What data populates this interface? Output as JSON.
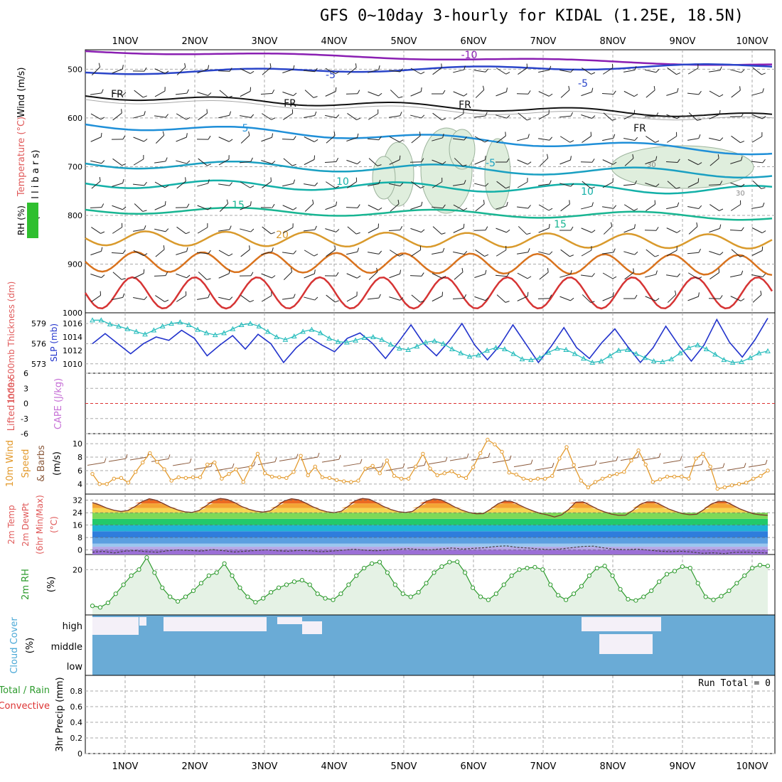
{
  "title": "GFS 0~10day 3-hourly for KIDAL (1.25E, 18.5N)",
  "dates": [
    "1NOV",
    "2NOV",
    "3NOV",
    "4NOV",
    "5NOV",
    "6NOV",
    "7NOV",
    "8NOV",
    "9NOV",
    "10NOV"
  ],
  "colors": {
    "background": "#ffffff",
    "grid": "#aaaaaa",
    "slp": "#2233cc",
    "thickness": "#22bbbb",
    "wind_speed": "#e39a2d",
    "wind_barbs": "#8b5a3c",
    "rh": "#2e9b2e",
    "rh_fill": "#e5f2e5",
    "cloud": "#6aabd6",
    "cloud_clear": "#f4f0f8",
    "lifted_index_line": "#dd3333"
  },
  "chart_data": [
    {
      "panel": "upper_air",
      "type": "contour",
      "ylabels": [
        "Wind (m/s)",
        "Temperature (°C)",
        "RH (%)",
        "(m i l l i b a r s)"
      ],
      "yticks": [
        500,
        600,
        700,
        800,
        900,
        1000
      ],
      "ylim": [
        460,
        1000
      ],
      "isotherm_labels": [
        "-10",
        "-5",
        "-5",
        "FR",
        "FR",
        "FR",
        "FR",
        "5",
        "-5",
        "10",
        "10",
        "15",
        "15",
        "20"
      ],
      "rh_labels": [
        "30",
        "30"
      ]
    },
    {
      "panel": "thickness_slp",
      "type": "line",
      "ylabel_left": "1000-500mb Thickness (dm)",
      "ylabel_right": "SLP (mb)",
      "yticks_left": [
        573,
        576,
        579
      ],
      "yticks_right": [
        1010,
        1012,
        1014,
        1016
      ],
      "series": [
        {
          "name": "SLP (mb)",
          "values": [
            1013,
            1014.5,
            1013,
            1011.5,
            1013,
            1014,
            1013.5,
            1015,
            1013.8,
            1011.2,
            1012.8,
            1014.2,
            1012.2,
            1014.4,
            1013,
            1010.2,
            1012.4,
            1014,
            1012.8,
            1011.8,
            1013.8,
            1014.6,
            1013,
            1010.8,
            1013.2,
            1015.8,
            1013,
            1011.2,
            1013.4,
            1016,
            1012.8,
            1010.6,
            1012.8,
            1015.8,
            1013,
            1010.2,
            1012.6,
            1015.4,
            1012.4,
            1010.8,
            1013.2,
            1015.2,
            1012.6,
            1010.2,
            1012.4,
            1015.6,
            1012.8,
            1010.4,
            1012.8,
            1016.6,
            1013.2,
            1011,
            1013.6,
            1016.8
          ]
        },
        {
          "name": "1000-500mb Thickness (dm)",
          "values": [
            579.5,
            579.5,
            578.9,
            578.6,
            578.2,
            577.8,
            577.4,
            578,
            578.6,
            579,
            579.2,
            578.8,
            578.1,
            577.6,
            577.3,
            577.6,
            578.2,
            578.8,
            579,
            578.6,
            577.8,
            577,
            576.6,
            577.1,
            577.8,
            578.1,
            577.6,
            576.8,
            576.3,
            576.2,
            576.5,
            576.9,
            577,
            576.6,
            575.9,
            575.3,
            575.1,
            575.6,
            576.2,
            576.4,
            576,
            575.2,
            574.6,
            574.1,
            574.3,
            575,
            575.4,
            575.2,
            574.5,
            573.7,
            573.6,
            573.9,
            574.7,
            575.3,
            575.1,
            574.5,
            573.8,
            573.2,
            573.4,
            574.2,
            575,
            575.1,
            574.5,
            573.9,
            573.4,
            573.3,
            573.7,
            574.6,
            575.4,
            575.8,
            575.2,
            574.4,
            573.6,
            573.2,
            573.3,
            573.9,
            574.6,
            574.9
          ]
        }
      ]
    },
    {
      "panel": "stability",
      "type": "line",
      "ylabels": [
        "Lifted Index",
        "CAPE (J/kg)"
      ],
      "yticks": [
        6,
        3,
        0,
        -3,
        -6
      ],
      "ylim": [
        -6,
        6
      ],
      "series": [
        {
          "name": "Lifted Index",
          "values": []
        }
      ]
    },
    {
      "panel": "wind10m",
      "type": "line",
      "ylabels": [
        "10m Wind",
        "Speed",
        "& Barbs",
        "(m/s)"
      ],
      "yticks": [
        4,
        6,
        8,
        10
      ],
      "ylim": [
        2.5,
        11.5
      ],
      "series": [
        {
          "name": "10m Wind Speed",
          "values": [
            5.5,
            4,
            4,
            4.8,
            4.9,
            4.2,
            5.8,
            7.2,
            8.6,
            7.3,
            6.2,
            4.5,
            5,
            4.9,
            5,
            5,
            6.9,
            7.2,
            4.8,
            5.5,
            6.2,
            4.3,
            6.5,
            8.5,
            5.6,
            5.1,
            5,
            4.9,
            5.8,
            8.2,
            5.3,
            6.6,
            5,
            4.9,
            4.6,
            4.4,
            4.3,
            4.5,
            6.3,
            6.7,
            5.6,
            7.5,
            5.2,
            4.8,
            4.8,
            6.6,
            8.5,
            6.3,
            5.3,
            5.6,
            5.9,
            5.2,
            4.9,
            6.5,
            8.6,
            10.6,
            9.9,
            8.8,
            5.7,
            5.4,
            4.8,
            4.6,
            4.8,
            4.8,
            5.2,
            7.8,
            9.5,
            6.8,
            4.5,
            3.5,
            4.3,
            4.8,
            5.2,
            5.5,
            5.8,
            7.5,
            9,
            6.9,
            4.3,
            4.7,
            5.1,
            5.1,
            5.1,
            4.8,
            7.8,
            8.5,
            6.6,
            3.3,
            3.5,
            3.8,
            4,
            4.2,
            4.8,
            5.2,
            6
          ]
        }
      ]
    },
    {
      "panel": "temperature",
      "type": "area",
      "ylabels": [
        "2m Temp",
        "2m DewPt",
        "(6hr Min/Max)"
      ],
      "ylabel_unit": "(°C)",
      "yticks": [
        0,
        8,
        16,
        24,
        32
      ],
      "ylim": [
        -3,
        36
      ],
      "series": [
        {
          "name": "2m Temp",
          "values": [
            30.5,
            29,
            27,
            25.6,
            24.8,
            25.4,
            28,
            31.2,
            33,
            32,
            29.8,
            27.5,
            25.8,
            24.6,
            24.2,
            25.4,
            28.5,
            31.8,
            33.2,
            32.5,
            30.5,
            28,
            26.2,
            25,
            24.4,
            25.2,
            28.3,
            31.6,
            33,
            32.3,
            30.2,
            27.8,
            25.9,
            24.6,
            24,
            24.9,
            28.2,
            31.8,
            33.2,
            32.6,
            30.4,
            27.9,
            26,
            24.7,
            24.1,
            24.8,
            28,
            31.5,
            32.9,
            32.4,
            30.1,
            27.6,
            25.6,
            24.1,
            23.3,
            23.4,
            26.2,
            29.6,
            31.5,
            31.2,
            29.1,
            26.9,
            25.1,
            23.5,
            22.6,
            21.2,
            22.6,
            26.1,
            30.8,
            31,
            28.8,
            26.4,
            24.6,
            23.1,
            22.3,
            22.4,
            25.4,
            29.2,
            31,
            31,
            28.9,
            26.5,
            24.8,
            23.4,
            22.7,
            23,
            26,
            29.4,
            31.2,
            31.2,
            29,
            26.6,
            24.8,
            23.3,
            22.6,
            22.3
          ]
        },
        {
          "name": "2m DewPt",
          "values": [
            -1.5,
            -1,
            -2,
            -0.8,
            -0.5,
            -1.2,
            -1.5,
            -0.5,
            0,
            -0.4,
            -0.8,
            0.2,
            -0.5,
            -1.4,
            -0.9,
            -0.4,
            0,
            -0.6,
            -0.9,
            -0.3,
            -0.6,
            -1.2,
            -0.8,
            -0.2,
            0.4,
            -0.2,
            -0.6,
            -0.1,
            0.4,
            0.8,
            0.2,
            0,
            0.6,
            1.2,
            0.5,
            1,
            1.4,
            2.2,
            2.6,
            1.6,
            1.2,
            0.6,
            0.2,
            0.6,
            1.4,
            2.2,
            2.4,
            1.2,
            0.4,
            0.1,
            0.5,
            -0.1,
            -0.8,
            -1.2,
            -0.9,
            -1.4,
            -2.2,
            -1.9,
            -2.4,
            -1.6,
            -1.5,
            -1.8,
            -2
          ]
        }
      ]
    },
    {
      "panel": "rh",
      "type": "line",
      "ylabels": [
        "2m RH",
        "(%)"
      ],
      "yticks": [
        20
      ],
      "ylim": [
        5,
        25
      ],
      "series": [
        {
          "name": "2m RH",
          "values": [
            8,
            7.5,
            9,
            12,
            15,
            18,
            20,
            24,
            19,
            14,
            11,
            9.5,
            11,
            13,
            15.5,
            18,
            19,
            22,
            18,
            14,
            11,
            9.2,
            10.5,
            12.5,
            14,
            15,
            16,
            16.5,
            15,
            12,
            10.5,
            10,
            12,
            15,
            18,
            20.5,
            22,
            22.5,
            19,
            15,
            12,
            11,
            12.5,
            15.5,
            19,
            21,
            22.5,
            22.6,
            19,
            14,
            11,
            10,
            12,
            15,
            18,
            20,
            20.5,
            20.8,
            20,
            15,
            11.5,
            10,
            12,
            14.5,
            18,
            20.5,
            21.2,
            18,
            13.5,
            10.2,
            9.8,
            11,
            13,
            16,
            18.5,
            19.5,
            21,
            20.5,
            15.5,
            11,
            10,
            11.2,
            13,
            15.5,
            18,
            20.5,
            21.5,
            21.2
          ]
        }
      ]
    },
    {
      "panel": "cloud",
      "type": "heatmap",
      "ylabels": [
        "Cloud Cover",
        "(%)"
      ],
      "yticks": [
        "high",
        "middle",
        "low"
      ]
    },
    {
      "panel": "precip",
      "type": "bar",
      "ylabels": [
        "Total / Rain",
        "Convective",
        "3hr Precip (mm)"
      ],
      "yticks": [
        0,
        0.2,
        0.4,
        0.6,
        0.8
      ],
      "ylim": [
        0,
        1
      ],
      "annotation": "Run Total = 0",
      "values": []
    }
  ]
}
